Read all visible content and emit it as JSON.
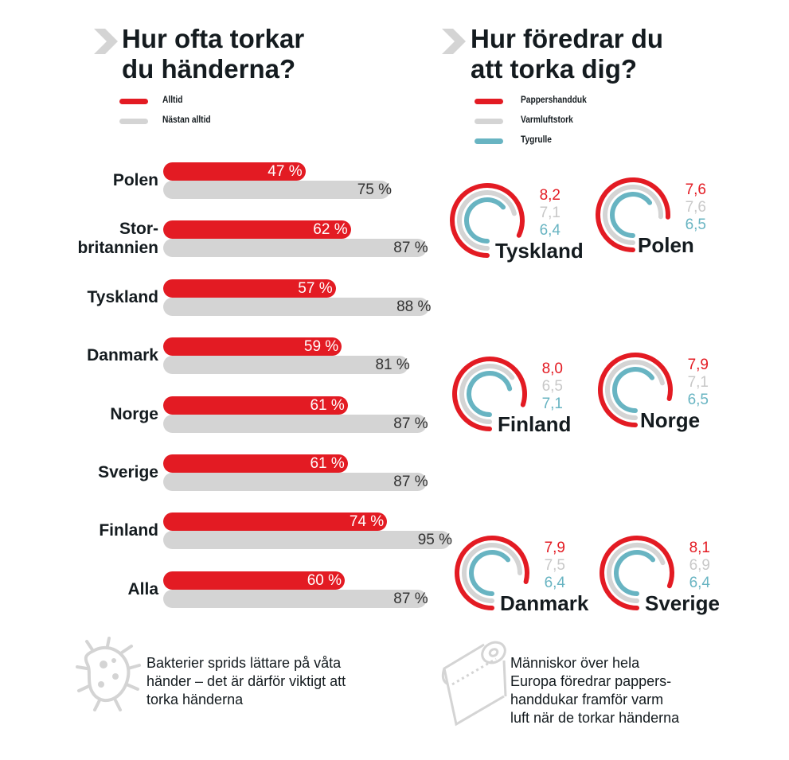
{
  "colors": {
    "red": "#e31b23",
    "gray": "#d4d4d4",
    "teal": "#68b4c2"
  },
  "left": {
    "title_line1": "Hur ofta torkar",
    "title_line2": "du händerna?",
    "legend": [
      "Alltid",
      "Nästan alltid"
    ]
  },
  "right": {
    "title_line1": "Hur föredrar du",
    "title_line2": "att torka dig?",
    "legend": [
      "Pappershandduk",
      "Varmluftstork",
      "Tygrulle"
    ]
  },
  "chart_data": [
    {
      "type": "bar",
      "orientation": "horizontal",
      "title": "Hur ofta torkar du händerna?",
      "categories": [
        "Polen",
        "Stor-britannien",
        "Tyskland",
        "Danmark",
        "Norge",
        "Sverige",
        "Finland",
        "Alla"
      ],
      "category_lines": [
        [
          "Polen"
        ],
        [
          "Stor-",
          "britannien"
        ],
        [
          "Tyskland"
        ],
        [
          "Danmark"
        ],
        [
          "Norge"
        ],
        [
          "Sverige"
        ],
        [
          "Finland"
        ],
        [
          "Alla"
        ]
      ],
      "series": [
        {
          "name": "Alltid",
          "values": [
            47,
            62,
            57,
            59,
            61,
            61,
            74,
            60
          ],
          "labels": [
            "47 %",
            "62 %",
            "57 %",
            "59 %",
            "61 %",
            "61 %",
            "74 %",
            "60 %"
          ]
        },
        {
          "name": "Nästan alltid",
          "values": [
            75,
            87,
            88,
            81,
            87,
            87,
            95,
            87
          ],
          "labels": [
            "75 %",
            "87 %",
            "88 %",
            "81 %",
            "87 %",
            "87 %",
            "95 %",
            "87 %"
          ]
        }
      ],
      "xlim": [
        0,
        100
      ],
      "legend": "top-left"
    },
    {
      "type": "radial",
      "title": "Hur föredrar du att torka dig?",
      "scale_max": 10,
      "series_names": [
        "Pappershandduk",
        "Varmluftstork",
        "Tygrulle"
      ],
      "groups": [
        {
          "name": "Tyskland",
          "values": [
            8.2,
            7.1,
            6.4
          ],
          "labels": [
            "8,2",
            "7,1",
            "6,4"
          ]
        },
        {
          "name": "Polen",
          "values": [
            7.6,
            7.6,
            6.5
          ],
          "labels": [
            "7,6",
            "7,6",
            "6,5"
          ]
        },
        {
          "name": "Finland",
          "values": [
            8.0,
            6.5,
            7.1
          ],
          "labels": [
            "8,0",
            "6,5",
            "7,1"
          ]
        },
        {
          "name": "Norge",
          "values": [
            7.9,
            7.1,
            6.5
          ],
          "labels": [
            "7,9",
            "7,1",
            "6,5"
          ]
        },
        {
          "name": "Danmark",
          "values": [
            7.9,
            7.5,
            6.4
          ],
          "labels": [
            "7,9",
            "7,5",
            "6,4"
          ]
        },
        {
          "name": "Sverige",
          "values": [
            8.1,
            6.9,
            6.4
          ],
          "labels": [
            "8,1",
            "6,9",
            "6,4"
          ]
        }
      ],
      "legend": "top-left"
    }
  ],
  "notes": {
    "bacteria": [
      "Bakterier sprids lättare på våta",
      "händer – det är därför viktigt att",
      "torka händerna"
    ],
    "paper": [
      "Människor över hela",
      "Europa föredrar pappers-",
      "handdukar framför varm",
      "luft när de torkar händerna"
    ]
  },
  "icons": {
    "chevron": "chevron-right-icon",
    "bacteria": "bacteria-icon",
    "paper": "paper-roll-icon"
  }
}
